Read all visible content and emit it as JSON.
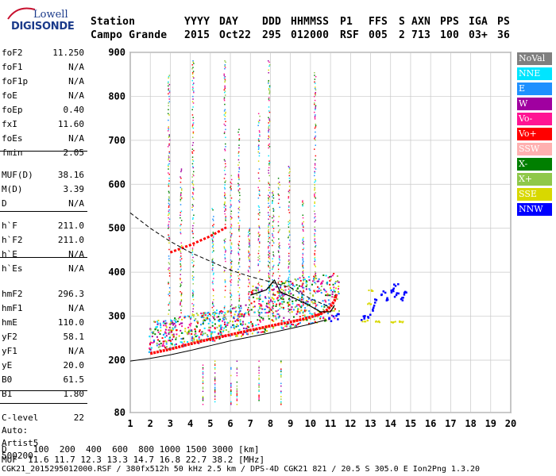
{
  "logo": {
    "line1": "Lowell",
    "line2": "DIGISONDE"
  },
  "header": {
    "labels": [
      "Station",
      "YYYY",
      "DAY",
      "DDD",
      "HHMMSS",
      "P1",
      "FFS",
      "S",
      "AXN",
      "PPS",
      "IGA",
      "PS"
    ],
    "values": [
      "Campo Grande",
      "2015",
      "Oct22",
      "295",
      "012000",
      "RSF",
      "005",
      "2",
      "713",
      "100",
      "03+",
      "36"
    ]
  },
  "params": [
    {
      "k": "foF2",
      "v": "11.250"
    },
    {
      "k": "foF1",
      "v": "N/A"
    },
    {
      "k": "foF1p",
      "v": "N/A"
    },
    {
      "k": "foE",
      "v": "N/A"
    },
    {
      "k": "foEp",
      "v": "0.40"
    },
    {
      "k": "fxI",
      "v": "11.60"
    },
    {
      "k": "foEs",
      "v": "N/A"
    },
    {
      "k": "fmin",
      "v": "2.05"
    },
    {
      "k": "MUF(D)",
      "v": "38.16"
    },
    {
      "k": "M(D)",
      "v": "3.39"
    },
    {
      "k": "D",
      "v": "N/A"
    },
    {
      "k": "h`F",
      "v": "211.0"
    },
    {
      "k": "h`F2",
      "v": "211.0"
    },
    {
      "k": "h`E",
      "v": "N/A"
    },
    {
      "k": "h`Es",
      "v": "N/A"
    },
    {
      "k": "hmF2",
      "v": "296.3"
    },
    {
      "k": "hmF1",
      "v": "N/A"
    },
    {
      "k": "hmE",
      "v": "110.0"
    },
    {
      "k": "yF2",
      "v": "58.1"
    },
    {
      "k": "yF1",
      "v": "N/A"
    },
    {
      "k": "yE",
      "v": "20.0"
    },
    {
      "k": "B0",
      "v": "61.5"
    },
    {
      "k": "B1",
      "v": "1.80"
    },
    {
      "k": "C-level",
      "v": "22"
    }
  ],
  "autoscaling": {
    "line1": "Auto:",
    "line2": "Artist5",
    "line3": "500200"
  },
  "legend": [
    {
      "label": "NoVal",
      "color": "#7f7f7f"
    },
    {
      "label": "NNE",
      "color": "#00e5ff"
    },
    {
      "label": "E",
      "color": "#1e90ff"
    },
    {
      "label": "W",
      "color": "#a000a0"
    },
    {
      "label": "Vo-",
      "color": "#ff1493"
    },
    {
      "label": "Vo+",
      "color": "#ff0000"
    },
    {
      "label": "SSW",
      "color": "#ffb0b0"
    },
    {
      "label": "X-",
      "color": "#007f00"
    },
    {
      "label": "X+",
      "color": "#8fc84a"
    },
    {
      "label": "SSE",
      "color": "#d8d800"
    },
    {
      "label": "NNW",
      "color": "#0000ff"
    }
  ],
  "bottom": {
    "d_line": "D     100  200  400  600  800 1000 1500 3000 [km]",
    "muf_line": "MUF  11.6 11.7 12.3 13.3 14.7 16.8 22.7 38.2 [MHz]",
    "file_line": "CGK21_2015295012000.RSF / 380fx512h 50 kHz 2.5 km / DPS-4D CGK21 821 / 20.5 S 305.0 E Ion2Png 1.3.20"
  },
  "chart_data": {
    "type": "scatter",
    "x_ticks": [
      1,
      2,
      3,
      4,
      5,
      6,
      7,
      8,
      9,
      10,
      11,
      12,
      13,
      14,
      15,
      16,
      17,
      18,
      19,
      20
    ],
    "y_ticks": [
      80,
      200,
      300,
      400,
      500,
      600,
      700,
      800,
      900
    ],
    "xlim": [
      1,
      20
    ],
    "ylim": [
      80,
      900
    ],
    "grid": true,
    "colors": {
      "vo_minus": "#ff1493",
      "vo_plus": "#ff0000",
      "sse": "#d8d800",
      "nnw": "#0000ff",
      "e": "#1e90ff",
      "nne": "#00e5ff",
      "w": "#a000a0",
      "xm": "#007f00",
      "xp": "#8fc84a"
    },
    "ordinary_trace": [
      [
        2.0,
        215
      ],
      [
        3,
        225
      ],
      [
        4,
        237
      ],
      [
        5,
        248
      ],
      [
        6,
        258
      ],
      [
        7,
        268
      ],
      [
        8,
        278
      ],
      [
        9,
        287
      ],
      [
        9.5,
        292
      ],
      [
        10,
        298
      ],
      [
        10.5,
        305
      ],
      [
        10.8,
        313
      ],
      [
        11.0,
        322
      ],
      [
        11.2,
        335
      ],
      [
        11.3,
        350
      ]
    ],
    "sloping_trace": [
      [
        3,
        445
      ],
      [
        4,
        462
      ],
      [
        5,
        482
      ],
      [
        5.8,
        502
      ]
    ],
    "e_plasma_curve": [
      [
        1,
        198
      ],
      [
        2,
        204
      ],
      [
        3,
        212
      ],
      [
        4,
        222
      ],
      [
        5,
        233
      ],
      [
        6,
        244
      ],
      [
        7,
        253
      ],
      [
        8,
        262
      ],
      [
        9,
        272
      ],
      [
        10,
        282
      ],
      [
        10.8,
        292
      ]
    ],
    "profile_dashed": [
      [
        1,
        535
      ],
      [
        2,
        500
      ],
      [
        3,
        470
      ],
      [
        4,
        445
      ],
      [
        5,
        425
      ],
      [
        6,
        405
      ],
      [
        7,
        390
      ],
      [
        8,
        378
      ],
      [
        9,
        365
      ],
      [
        10,
        340
      ],
      [
        11,
        320
      ]
    ],
    "profile_solid": [
      [
        7,
        348
      ],
      [
        7.8,
        360
      ],
      [
        8.2,
        382
      ],
      [
        8.5,
        355
      ],
      [
        9,
        345
      ],
      [
        9.8,
        328
      ],
      [
        10.5,
        310
      ],
      [
        11,
        310
      ],
      [
        11.2,
        325
      ]
    ],
    "nnw_cluster": [
      [
        13.2,
        340
      ],
      [
        13.6,
        355
      ],
      [
        14,
        360
      ],
      [
        14.3,
        350
      ],
      [
        14.6,
        355
      ],
      [
        14.2,
        372
      ],
      [
        13.8,
        340
      ],
      [
        12.5,
        295
      ],
      [
        12.8,
        305
      ],
      [
        13.0,
        320
      ],
      [
        14.5,
        340
      ],
      [
        11.3,
        300
      ],
      [
        11.0,
        295
      ]
    ],
    "sse_points": [
      [
        12.7,
        291
      ],
      [
        13.3,
        289
      ],
      [
        14.1,
        288
      ],
      [
        14.5,
        289
      ],
      [
        13.0,
        360
      ],
      [
        12.9,
        330
      ]
    ]
  }
}
